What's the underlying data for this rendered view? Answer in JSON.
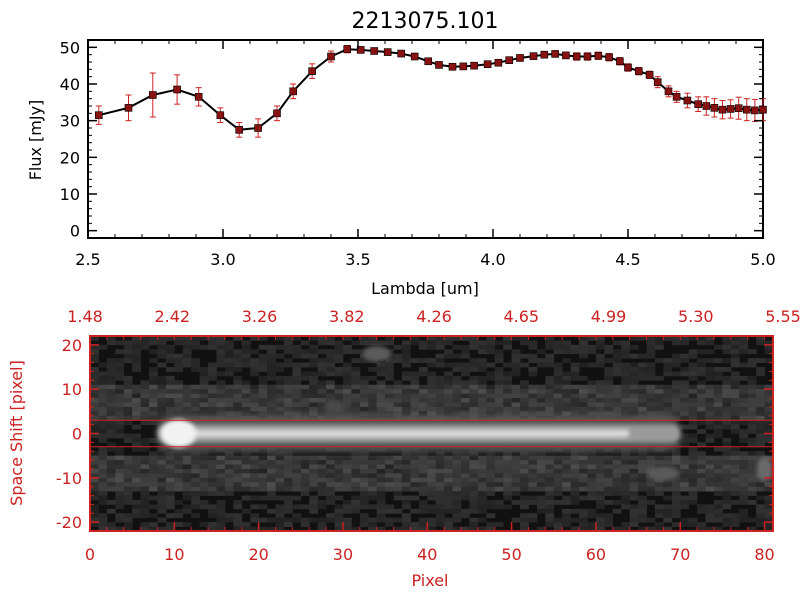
{
  "colors": {
    "axis_top": "#000000",
    "axis_bottom": "#cc2222",
    "errorbar": "#cc2222",
    "marker": "#881111",
    "line": "#000000"
  },
  "chart_data": [
    {
      "type": "line",
      "title": "2213075.101",
      "xlabel": "Lambda [um]",
      "ylabel": "Flux [mJy]",
      "xlim": [
        2.5,
        5.0
      ],
      "ylim": [
        -2,
        52
      ],
      "x_ticks": [
        "2.5",
        "3.0",
        "3.5",
        "4.0",
        "4.5",
        "5.0"
      ],
      "y_ticks": [
        "0",
        "10",
        "20",
        "30",
        "40",
        "50"
      ],
      "series": [
        {
          "x": [
            2.54,
            2.65,
            2.74,
            2.83,
            2.91,
            2.99,
            3.06,
            3.13,
            3.2,
            3.26,
            3.33,
            3.4,
            3.46,
            3.51,
            3.56,
            3.61,
            3.66,
            3.71,
            3.76,
            3.8,
            3.85,
            3.89,
            3.93,
            3.98,
            4.02,
            4.06,
            4.1,
            4.15,
            4.19,
            4.23,
            4.27,
            4.31,
            4.35,
            4.39,
            4.43,
            4.47,
            4.5,
            4.54,
            4.58,
            4.61,
            4.65,
            4.68,
            4.72,
            4.76,
            4.79,
            4.82,
            4.85,
            4.88,
            4.91,
            4.94,
            4.97,
            5.0
          ],
          "values": [
            31.5,
            33.5,
            37.0,
            38.5,
            36.5,
            31.5,
            27.5,
            28.0,
            32.0,
            38.0,
            43.5,
            47.5,
            49.5,
            49.3,
            49.0,
            48.7,
            48.3,
            47.5,
            46.2,
            45.2,
            44.7,
            44.8,
            45.0,
            45.4,
            45.8,
            46.5,
            47.1,
            47.6,
            48.0,
            48.2,
            47.8,
            47.5,
            47.5,
            47.7,
            47.3,
            46.2,
            44.5,
            43.5,
            42.5,
            40.5,
            38.0,
            36.5,
            35.5,
            34.5,
            34.0,
            33.5,
            33.0,
            33.2,
            33.4,
            33.0,
            32.8,
            33.0
          ],
          "errors": [
            2.5,
            3.5,
            6.0,
            4.0,
            2.5,
            2.0,
            2.0,
            2.5,
            2.0,
            2.0,
            2.0,
            1.5,
            1.0,
            0.8,
            0.8,
            0.8,
            0.8,
            0.8,
            0.8,
            0.8,
            0.8,
            0.8,
            0.8,
            0.8,
            0.8,
            0.8,
            0.8,
            0.8,
            0.8,
            0.8,
            0.8,
            1.0,
            1.0,
            1.0,
            1.0,
            1.0,
            1.0,
            1.0,
            1.0,
            1.5,
            1.5,
            1.5,
            2.0,
            2.0,
            2.5,
            2.5,
            2.5,
            2.5,
            3.0,
            3.0,
            3.0,
            3.0
          ]
        }
      ]
    },
    {
      "type": "heatmap",
      "xlabel": "Pixel",
      "ylabel": "Space Shift [pixel]",
      "xlim": [
        0,
        81
      ],
      "ylim": [
        -22,
        22
      ],
      "x_ticks": [
        "0",
        "10",
        "20",
        "30",
        "40",
        "50",
        "60",
        "70",
        "80"
      ],
      "y_ticks": [
        "-20",
        "-10",
        "0",
        "10",
        "20"
      ],
      "top_ticks": [
        "1.48",
        "2.42",
        "3.26",
        "3.82",
        "4.26",
        "4.65",
        "4.99",
        "5.30",
        "5.55"
      ],
      "aperture_lines": [
        3,
        -3
      ],
      "trace_center": 0
    }
  ]
}
